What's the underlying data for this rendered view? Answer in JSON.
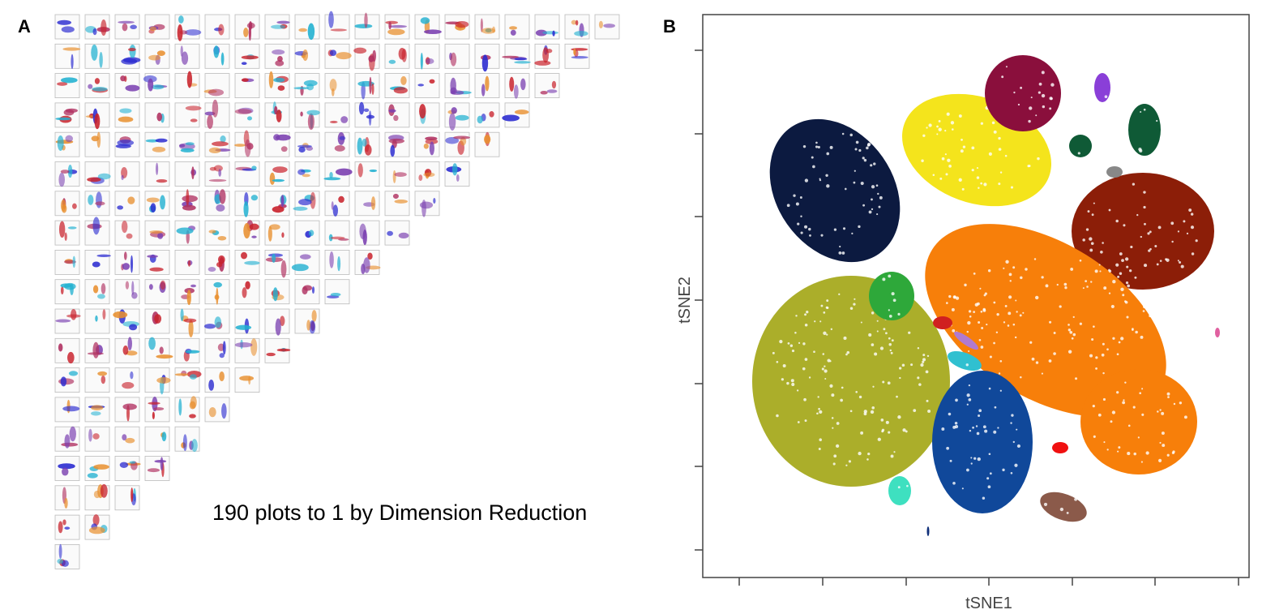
{
  "panel_a": {
    "label": "A",
    "caption": "190 plots to 1 by Dimension Reduction"
  },
  "panel_b": {
    "label": "B",
    "x_axis_label": "tSNE1",
    "y_axis_label": "tSNE2"
  }
}
